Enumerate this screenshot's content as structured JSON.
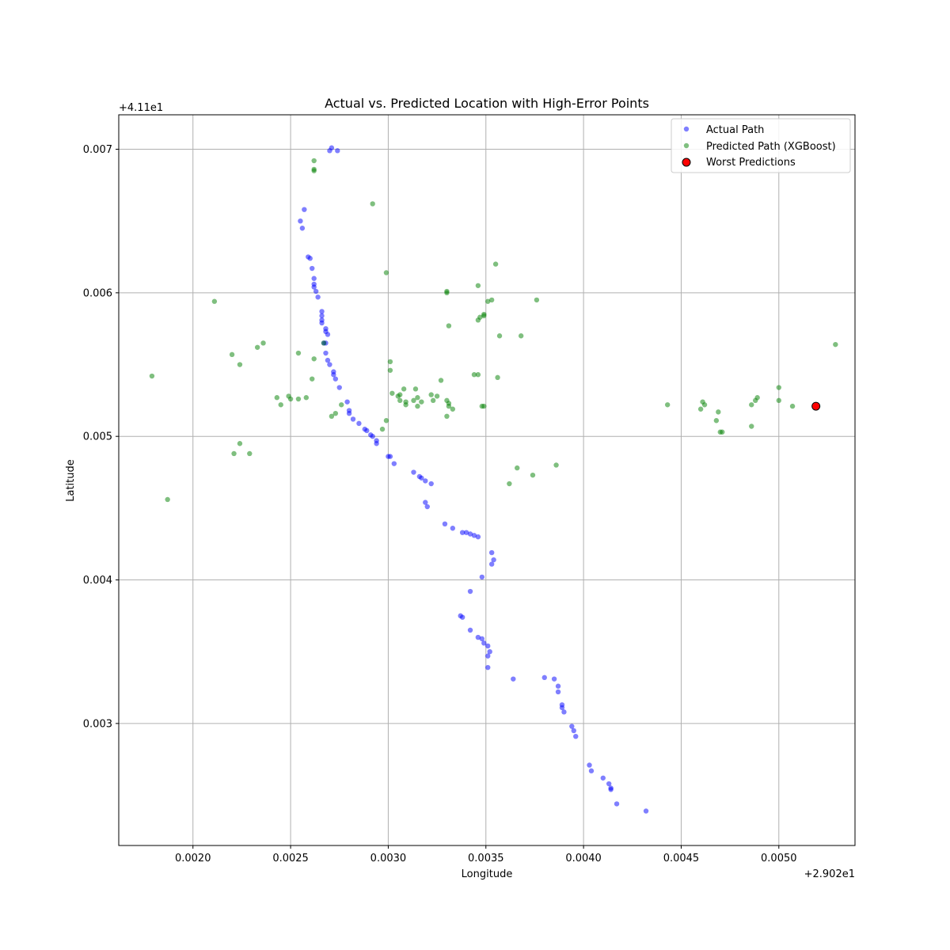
{
  "chart_data": {
    "type": "scatter",
    "title": "Actual vs. Predicted Location with High-Error Points",
    "xlabel": "Longitude",
    "ylabel": "Latitude",
    "x_offset_label": "+2.902e1",
    "y_offset_label": "+4.11e1",
    "xlim": [
      0.00162,
      0.00539
    ],
    "ylim": [
      0.00215,
      0.00724
    ],
    "x_ticks": [
      0.002,
      0.0025,
      0.003,
      0.0035,
      0.004,
      0.0045,
      0.005
    ],
    "x_tick_labels": [
      "0.0020",
      "0.0025",
      "0.0030",
      "0.0035",
      "0.0040",
      "0.0045",
      "0.0050"
    ],
    "y_ticks": [
      0.003,
      0.004,
      0.005,
      0.006,
      0.007
    ],
    "y_tick_labels": [
      "0.003",
      "0.004",
      "0.005",
      "0.006",
      "0.007"
    ],
    "grid": true,
    "legend_placement": "upper right",
    "series": [
      {
        "name": "Actual Path",
        "color": "#0000ff",
        "marker": "circle",
        "points": [
          [
            0.00271,
            0.00701
          ],
          [
            0.0027,
            0.00699
          ],
          [
            0.00274,
            0.00699
          ],
          [
            0.00257,
            0.00658
          ],
          [
            0.00255,
            0.0065
          ],
          [
            0.00256,
            0.00645
          ],
          [
            0.00259,
            0.00625
          ],
          [
            0.0026,
            0.00624
          ],
          [
            0.00261,
            0.00617
          ],
          [
            0.00262,
            0.0061
          ],
          [
            0.00262,
            0.00606
          ],
          [
            0.00262,
            0.00604
          ],
          [
            0.00263,
            0.00601
          ],
          [
            0.00264,
            0.00597
          ],
          [
            0.00266,
            0.00587
          ],
          [
            0.00266,
            0.00584
          ],
          [
            0.00266,
            0.00581
          ],
          [
            0.00266,
            0.00579
          ],
          [
            0.00268,
            0.00575
          ],
          [
            0.00268,
            0.00573
          ],
          [
            0.00269,
            0.00571
          ],
          [
            0.00268,
            0.00565
          ],
          [
            0.00267,
            0.00565
          ],
          [
            0.00268,
            0.00558
          ],
          [
            0.00269,
            0.00553
          ],
          [
            0.0027,
            0.0055
          ],
          [
            0.00272,
            0.00545
          ],
          [
            0.00272,
            0.00543
          ],
          [
            0.00273,
            0.0054
          ],
          [
            0.00275,
            0.00534
          ],
          [
            0.00279,
            0.00524
          ],
          [
            0.0028,
            0.00518
          ],
          [
            0.0028,
            0.00516
          ],
          [
            0.00282,
            0.00512
          ],
          [
            0.00285,
            0.00509
          ],
          [
            0.00288,
            0.00505
          ],
          [
            0.00289,
            0.00504
          ],
          [
            0.00291,
            0.00501
          ],
          [
            0.00292,
            0.005
          ],
          [
            0.00294,
            0.00497
          ],
          [
            0.00294,
            0.00495
          ],
          [
            0.003,
            0.00486
          ],
          [
            0.00301,
            0.00486
          ],
          [
            0.00303,
            0.00481
          ],
          [
            0.00313,
            0.00475
          ],
          [
            0.00316,
            0.00472
          ],
          [
            0.00317,
            0.00471
          ],
          [
            0.00319,
            0.00469
          ],
          [
            0.00322,
            0.00467
          ],
          [
            0.00319,
            0.00454
          ],
          [
            0.0032,
            0.00451
          ],
          [
            0.00329,
            0.00439
          ],
          [
            0.00333,
            0.00436
          ],
          [
            0.00338,
            0.00433
          ],
          [
            0.0034,
            0.00433
          ],
          [
            0.00342,
            0.00432
          ],
          [
            0.00344,
            0.00431
          ],
          [
            0.00346,
            0.0043
          ],
          [
            0.00353,
            0.00419
          ],
          [
            0.00354,
            0.00414
          ],
          [
            0.00353,
            0.00411
          ],
          [
            0.00348,
            0.00402
          ],
          [
            0.00342,
            0.00392
          ],
          [
            0.00337,
            0.00375
          ],
          [
            0.00338,
            0.00374
          ],
          [
            0.00342,
            0.00365
          ],
          [
            0.00346,
            0.0036
          ],
          [
            0.00348,
            0.00359
          ],
          [
            0.00349,
            0.00356
          ],
          [
            0.00351,
            0.00354
          ],
          [
            0.00352,
            0.0035
          ],
          [
            0.00351,
            0.00347
          ],
          [
            0.00351,
            0.00339
          ],
          [
            0.00364,
            0.00331
          ],
          [
            0.0038,
            0.00332
          ],
          [
            0.00385,
            0.00331
          ],
          [
            0.00387,
            0.00326
          ],
          [
            0.00387,
            0.00322
          ],
          [
            0.00389,
            0.00313
          ],
          [
            0.00389,
            0.00311
          ],
          [
            0.0039,
            0.00308
          ],
          [
            0.00394,
            0.00298
          ],
          [
            0.00395,
            0.00295
          ],
          [
            0.00396,
            0.00291
          ],
          [
            0.00403,
            0.00271
          ],
          [
            0.00404,
            0.00267
          ],
          [
            0.0041,
            0.00262
          ],
          [
            0.00413,
            0.00258
          ],
          [
            0.00414,
            0.00255
          ],
          [
            0.00414,
            0.00254
          ],
          [
            0.00417,
            0.00244
          ],
          [
            0.00432,
            0.00239
          ]
        ]
      },
      {
        "name": "Predicted Path (XGBoost)",
        "color": "#008000",
        "marker": "circle",
        "points": [
          [
            0.00262,
            0.00692
          ],
          [
            0.00262,
            0.00686
          ],
          [
            0.00262,
            0.00685
          ],
          [
            0.00292,
            0.00662
          ],
          [
            0.00355,
            0.0062
          ],
          [
            0.00299,
            0.00614
          ],
          [
            0.00346,
            0.00605
          ],
          [
            0.0033,
            0.00601
          ],
          [
            0.0033,
            0.006
          ],
          [
            0.00353,
            0.00595
          ],
          [
            0.00351,
            0.00594
          ],
          [
            0.00376,
            0.00595
          ],
          [
            0.00211,
            0.00594
          ],
          [
            0.00349,
            0.00585
          ],
          [
            0.00349,
            0.00584
          ],
          [
            0.00347,
            0.00583
          ],
          [
            0.00346,
            0.00581
          ],
          [
            0.00331,
            0.00577
          ],
          [
            0.00357,
            0.0057
          ],
          [
            0.00368,
            0.0057
          ],
          [
            0.00236,
            0.00565
          ],
          [
            0.00233,
            0.00562
          ],
          [
            0.00267,
            0.00565
          ],
          [
            0.00529,
            0.00564
          ],
          [
            0.0022,
            0.00557
          ],
          [
            0.00254,
            0.00558
          ],
          [
            0.00262,
            0.00554
          ],
          [
            0.00301,
            0.00552
          ],
          [
            0.00224,
            0.0055
          ],
          [
            0.00301,
            0.00546
          ],
          [
            0.00179,
            0.00542
          ],
          [
            0.00344,
            0.00543
          ],
          [
            0.00346,
            0.00543
          ],
          [
            0.00356,
            0.00541
          ],
          [
            0.00261,
            0.0054
          ],
          [
            0.00327,
            0.00539
          ],
          [
            0.00308,
            0.00533
          ],
          [
            0.00314,
            0.00533
          ],
          [
            0.00302,
            0.0053
          ],
          [
            0.00305,
            0.00528
          ],
          [
            0.00306,
            0.00529
          ],
          [
            0.00315,
            0.00527
          ],
          [
            0.00322,
            0.00529
          ],
          [
            0.00325,
            0.00528
          ],
          [
            0.0033,
            0.00525
          ],
          [
            0.00249,
            0.00528
          ],
          [
            0.00258,
            0.00527
          ],
          [
            0.00243,
            0.00527
          ],
          [
            0.00306,
            0.00525
          ],
          [
            0.00309,
            0.00524
          ],
          [
            0.00313,
            0.00525
          ],
          [
            0.00317,
            0.00524
          ],
          [
            0.00323,
            0.00525
          ],
          [
            0.00331,
            0.00523
          ],
          [
            0.0025,
            0.00526
          ],
          [
            0.00254,
            0.00526
          ],
          [
            0.00309,
            0.00522
          ],
          [
            0.00315,
            0.00521
          ],
          [
            0.00331,
            0.00521
          ],
          [
            0.00333,
            0.00519
          ],
          [
            0.00349,
            0.00521
          ],
          [
            0.00348,
            0.00521
          ],
          [
            0.00245,
            0.00522
          ],
          [
            0.00276,
            0.00522
          ],
          [
            0.00443,
            0.00522
          ],
          [
            0.00461,
            0.00524
          ],
          [
            0.00462,
            0.00522
          ],
          [
            0.0046,
            0.00519
          ],
          [
            0.00469,
            0.00517
          ],
          [
            0.00488,
            0.00525
          ],
          [
            0.00489,
            0.00527
          ],
          [
            0.00486,
            0.00522
          ],
          [
            0.005,
            0.00534
          ],
          [
            0.00507,
            0.00521
          ],
          [
            0.00519,
            0.00521
          ],
          [
            0.00273,
            0.00516
          ],
          [
            0.00271,
            0.00514
          ],
          [
            0.0033,
            0.00514
          ],
          [
            0.00299,
            0.00511
          ],
          [
            0.00468,
            0.00511
          ],
          [
            0.005,
            0.00525
          ],
          [
            0.00486,
            0.00507
          ],
          [
            0.00297,
            0.00505
          ],
          [
            0.0047,
            0.00503
          ],
          [
            0.00471,
            0.00503
          ],
          [
            0.00224,
            0.00495
          ],
          [
            0.00221,
            0.00488
          ],
          [
            0.00229,
            0.00488
          ],
          [
            0.00386,
            0.0048
          ],
          [
            0.00366,
            0.00478
          ],
          [
            0.00374,
            0.00473
          ],
          [
            0.00362,
            0.00467
          ],
          [
            0.00187,
            0.00456
          ]
        ]
      },
      {
        "name": "Worst Predictions",
        "color": "#ff0000",
        "edge_color": "#000000",
        "marker": "circle",
        "points": [
          [
            0.00519,
            0.00521
          ]
        ]
      }
    ]
  }
}
